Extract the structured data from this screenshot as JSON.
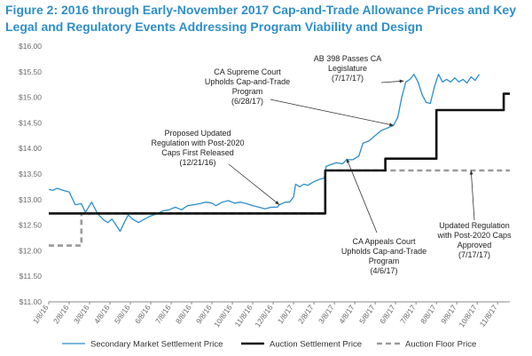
{
  "chart_data": {
    "type": "line",
    "title": "Figure 2: 2016 through Early-November 2017 Cap-and-Trade Allowance Prices and Key Legal and Regulatory Events Addressing Program Viability and Design",
    "xlabel": "",
    "ylabel": "",
    "ylim": [
      11.0,
      16.0
    ],
    "y_ticks": [
      "$11.00",
      "$11.50",
      "$12.00",
      "$12.50",
      "$13.00",
      "$13.50",
      "$14.00",
      "$14.50",
      "$15.00",
      "$15.50",
      "$16.00"
    ],
    "x_ticks": [
      "1/8/16",
      "2/8/16",
      "3/8/16",
      "4/8/16",
      "5/8/16",
      "6/8/16",
      "7/8/16",
      "8/8/16",
      "9/8/16",
      "10/8/16",
      "11/8/16",
      "12/8/16",
      "1/8/17",
      "2/8/17",
      "3/8/17",
      "4/8/17",
      "5/8/17",
      "6/8/17",
      "7/8/17",
      "8/8/17",
      "9/8/17",
      "10/8/17",
      "11/8/17"
    ],
    "x_range": [
      0,
      22.6
    ],
    "series": [
      {
        "name": "Secondary Market Settlement Price",
        "style": "solid-blue",
        "color": "#2b8ec8",
        "points": [
          [
            0,
            13.2
          ],
          [
            0.2,
            13.18
          ],
          [
            0.4,
            13.22
          ],
          [
            0.7,
            13.18
          ],
          [
            1.0,
            13.15
          ],
          [
            1.3,
            12.9
          ],
          [
            1.6,
            12.92
          ],
          [
            1.8,
            12.75
          ],
          [
            2.1,
            12.95
          ],
          [
            2.4,
            12.72
          ],
          [
            2.7,
            12.6
          ],
          [
            2.9,
            12.55
          ],
          [
            3.1,
            12.62
          ],
          [
            3.3,
            12.5
          ],
          [
            3.5,
            12.38
          ],
          [
            3.7,
            12.55
          ],
          [
            3.9,
            12.7
          ],
          [
            4.1,
            12.62
          ],
          [
            4.4,
            12.55
          ],
          [
            4.7,
            12.62
          ],
          [
            5.0,
            12.68
          ],
          [
            5.3,
            12.72
          ],
          [
            5.6,
            12.78
          ],
          [
            5.9,
            12.8
          ],
          [
            6.2,
            12.85
          ],
          [
            6.5,
            12.8
          ],
          [
            6.8,
            12.88
          ],
          [
            7.1,
            12.9
          ],
          [
            7.4,
            12.92
          ],
          [
            7.7,
            12.95
          ],
          [
            8.0,
            12.93
          ],
          [
            8.2,
            12.88
          ],
          [
            8.5,
            12.95
          ],
          [
            8.8,
            12.98
          ],
          [
            9.1,
            12.93
          ],
          [
            9.4,
            12.95
          ],
          [
            9.7,
            12.92
          ],
          [
            10.0,
            12.88
          ],
          [
            10.3,
            12.85
          ],
          [
            10.6,
            12.82
          ],
          [
            10.9,
            12.85
          ],
          [
            11.2,
            12.85
          ],
          [
            11.3,
            12.9
          ],
          [
            11.6,
            12.95
          ],
          [
            11.8,
            12.95
          ],
          [
            12.0,
            13.05
          ],
          [
            12.1,
            13.3
          ],
          [
            12.3,
            13.25
          ],
          [
            12.5,
            13.3
          ],
          [
            12.7,
            13.28
          ],
          [
            13.0,
            13.35
          ],
          [
            13.3,
            13.4
          ],
          [
            13.5,
            13.42
          ],
          [
            13.6,
            13.65
          ],
          [
            13.8,
            13.68
          ],
          [
            14.1,
            13.72
          ],
          [
            14.4,
            13.7
          ],
          [
            14.6,
            13.78
          ],
          [
            14.9,
            13.78
          ],
          [
            15.2,
            13.85
          ],
          [
            15.4,
            14.1
          ],
          [
            15.7,
            14.15
          ],
          [
            16.0,
            14.25
          ],
          [
            16.3,
            14.35
          ],
          [
            16.6,
            14.4
          ],
          [
            16.9,
            14.45
          ],
          [
            17.1,
            14.6
          ],
          [
            17.3,
            15.0
          ],
          [
            17.5,
            15.3
          ],
          [
            17.7,
            15.35
          ],
          [
            17.9,
            15.45
          ],
          [
            18.1,
            15.3
          ],
          [
            18.3,
            15.05
          ],
          [
            18.5,
            14.9
          ],
          [
            18.7,
            14.88
          ],
          [
            18.9,
            15.2
          ],
          [
            19.1,
            15.45
          ],
          [
            19.3,
            15.3
          ],
          [
            19.5,
            15.35
          ],
          [
            19.7,
            15.3
          ],
          [
            19.9,
            15.38
          ],
          [
            20.1,
            15.3
          ],
          [
            20.3,
            15.35
          ],
          [
            20.5,
            15.28
          ],
          [
            20.7,
            15.4
          ],
          [
            20.9,
            15.33
          ],
          [
            21.1,
            15.45
          ]
        ]
      },
      {
        "name": "Auction Settlement Price",
        "style": "solid-black",
        "color": "#111111",
        "points": [
          [
            0,
            12.73
          ],
          [
            10.5,
            12.73
          ],
          [
            12.0,
            12.73
          ],
          [
            13.55,
            12.73
          ],
          [
            13.55,
            13.57
          ],
          [
            16.5,
            13.57
          ],
          [
            16.5,
            13.8
          ],
          [
            19.0,
            13.8
          ],
          [
            19.0,
            14.75
          ],
          [
            22.3,
            14.75
          ],
          [
            22.3,
            15.07
          ],
          [
            22.6,
            15.07
          ]
        ]
      },
      {
        "name": "Auction Floor Price",
        "style": "dashed-gray",
        "color": "#9a9a9a",
        "points": [
          [
            0,
            12.1
          ],
          [
            1.6,
            12.1
          ],
          [
            1.6,
            12.73
          ],
          [
            13.55,
            12.73
          ],
          [
            13.55,
            13.57
          ],
          [
            22.6,
            13.57
          ]
        ]
      }
    ],
    "annotations": [
      {
        "id": "ab398",
        "lines": [
          "AB 398 Passes CA",
          "Legislature",
          "(7/17/17)"
        ],
        "target": [
          17.4,
          15.32
        ]
      },
      {
        "id": "supreme",
        "lines": [
          "CA Supreme Court",
          "Upholds Cap-and-Trade",
          "Program",
          "(6/28/17)"
        ],
        "target": [
          16.9,
          14.45
        ]
      },
      {
        "id": "proposed",
        "lines": [
          "Proposed Updated",
          "Regulation with Post-2020",
          "Caps First Released",
          "(12/21/16)"
        ],
        "target": [
          11.3,
          12.9
        ]
      },
      {
        "id": "appeals",
        "lines": [
          "CA Appeals Court",
          "Upholds Cap-and-Trade",
          "Program",
          "(4/6/17)"
        ],
        "target": [
          14.6,
          13.8
        ]
      },
      {
        "id": "updated",
        "lines": [
          "Updated Regulation",
          "with Post-2020 Caps",
          "Approved",
          "(7/17/17)"
        ],
        "target": [
          20.7,
          13.57
        ]
      }
    ],
    "legend_position": "bottom",
    "grid": false
  }
}
